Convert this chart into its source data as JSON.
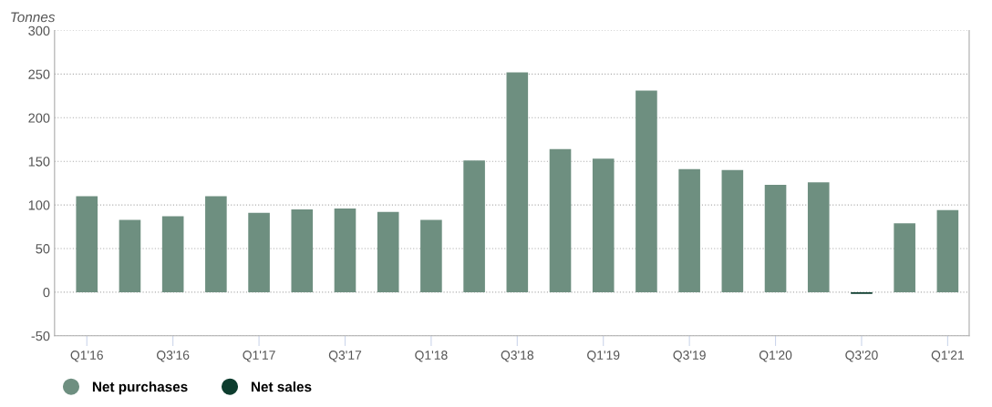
{
  "chart_data": {
    "type": "bar",
    "ylabel": "Tonnes",
    "categories": [
      "Q1'16",
      null,
      "Q3'16",
      null,
      "Q1'17",
      null,
      "Q3'17",
      null,
      "Q1'18",
      null,
      "Q3'18",
      null,
      "Q1'19",
      null,
      "Q3'19",
      null,
      "Q1'20",
      null,
      "Q3'20",
      null,
      "Q1'21"
    ],
    "series": [
      {
        "name": "Net purchases",
        "color": "#6e8f80",
        "values": [
          110,
          83,
          87,
          110,
          91,
          95,
          96,
          92,
          83,
          151,
          252,
          164,
          153,
          231,
          141,
          140,
          123,
          126,
          null,
          79,
          94
        ]
      },
      {
        "name": "Net sales",
        "color": "#0d3d2e",
        "values": [
          null,
          null,
          null,
          null,
          null,
          null,
          null,
          null,
          null,
          null,
          null,
          null,
          null,
          null,
          null,
          null,
          null,
          null,
          -2,
          null,
          null
        ]
      }
    ],
    "ylim": [
      -50,
      300
    ],
    "yticks": [
      -50,
      0,
      50,
      100,
      150,
      200,
      250,
      300
    ],
    "grid": "y",
    "legend": "bottom left"
  }
}
